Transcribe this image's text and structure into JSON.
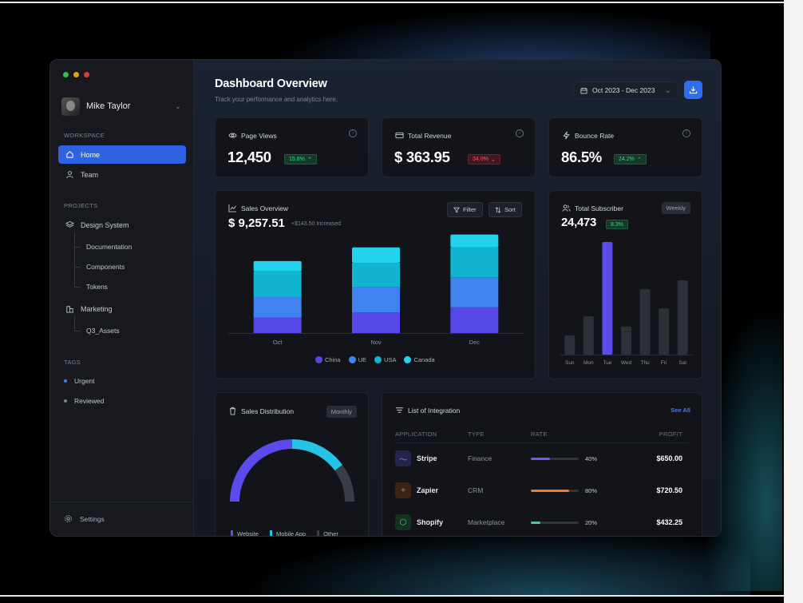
{
  "profile": {
    "name": "Mike Taylor"
  },
  "sidebar": {
    "workspace_label": "WORKSPACE",
    "workspace_items": [
      {
        "label": "Home",
        "icon": "home-icon"
      },
      {
        "label": "Team",
        "icon": "user-icon"
      }
    ],
    "projects_label": "PROJECTS",
    "design_system": {
      "label": "Design System",
      "children": [
        "Documentation",
        "Components",
        "Tokens"
      ]
    },
    "marketing": {
      "label": "Marketing",
      "children": [
        "Q3_Assets"
      ]
    },
    "tags_label": "TAGS",
    "tags": [
      {
        "label": "Urgent",
        "color": "#3d7df0"
      },
      {
        "label": "Reviewed",
        "color": "#7a7f8a"
      }
    ],
    "settings_label": "Settings"
  },
  "header": {
    "title": "Dashboard Overview",
    "subtitle": "Track your performance and analytics here.",
    "date_range": "Oct 2023 - Dec 2023"
  },
  "stats": [
    {
      "title": "Page Views",
      "value": "12,450",
      "change": "15.8%",
      "direction": "up",
      "icon": "eye-icon"
    },
    {
      "title": "Total Revenue",
      "value": "$ 363.95",
      "change": "34.0%",
      "direction": "down",
      "icon": "card-icon"
    },
    {
      "title": "Bounce Rate",
      "value": "86.5%",
      "change": "24.2%",
      "direction": "up",
      "icon": "bolt-icon"
    }
  ],
  "sales_overview": {
    "title": "Sales Overview",
    "value": "$ 9,257.51",
    "note": "+$143.50 Increased",
    "filter_label": "Filter",
    "sort_label": "Sort"
  },
  "subscribers": {
    "title": "Total Subscriber",
    "value": "24,473",
    "change": "8.3%",
    "period": "Weekly"
  },
  "distribution": {
    "title": "Sales Distribution",
    "period": "Monthly",
    "legend": [
      {
        "label": "Website",
        "color": "#5a4bea"
      },
      {
        "label": "Mobile App",
        "color": "#27c3e6"
      },
      {
        "label": "Other",
        "color": "#3a3d45"
      }
    ],
    "shares": [
      0.5,
      0.3,
      0.2
    ]
  },
  "integrations": {
    "title": "List of Integration",
    "see_all": "See All",
    "columns": [
      "APPLICATION",
      "TYPE",
      "RATE",
      "PROFIT"
    ],
    "rows": [
      {
        "name": "Stripe",
        "type": "Finance",
        "rate": "40%",
        "rate_value": 0.4,
        "profit": "$650.00",
        "color": "#6a5cf0",
        "icon_bg": "#23254a"
      },
      {
        "name": "Zapier",
        "type": "CRM",
        "rate": "80%",
        "rate_value": 0.8,
        "profit": "$720.50",
        "color": "#f07a30",
        "icon_bg": "#3a2418"
      },
      {
        "name": "Shopify",
        "type": "Marketplace",
        "rate": "20%",
        "rate_value": 0.2,
        "profit": "$432.25",
        "color": "#3ed38a",
        "icon_bg": "#16321f"
      }
    ]
  },
  "chart_data": [
    {
      "type": "bar",
      "stacked": true,
      "categories": [
        "Oct",
        "Nov",
        "Dec"
      ],
      "series": [
        {
          "name": "China",
          "color": "#5548e6",
          "values": [
            18,
            24,
            30
          ]
        },
        {
          "name": "UE",
          "color": "#3f82f0",
          "values": [
            24,
            30,
            35
          ]
        },
        {
          "name": "USA",
          "color": "#12b5d0",
          "values": [
            30,
            28,
            35
          ]
        },
        {
          "name": "Canada",
          "color": "#22d3ee",
          "values": [
            12,
            18,
            15
          ]
        }
      ],
      "ylim": [
        0,
        110
      ]
    },
    {
      "type": "bar",
      "categories": [
        "Sun",
        "Mon",
        "Tue",
        "Wed",
        "Thu",
        "Fri",
        "Sat"
      ],
      "values": [
        17,
        34,
        100,
        25,
        58,
        41,
        66
      ],
      "highlight_index": 2,
      "ylim": [
        0,
        100
      ]
    }
  ]
}
